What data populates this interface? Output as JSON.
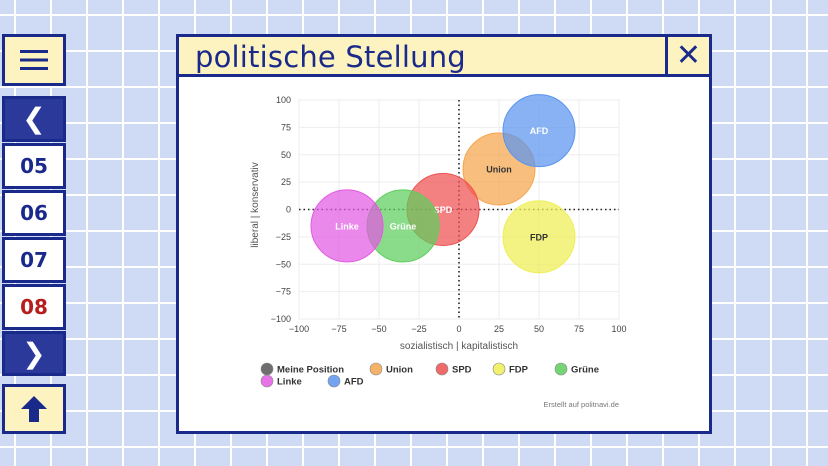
{
  "nav": {
    "menu_icon": "hamburger-menu-icon",
    "prev_icon": "chevron-left-icon",
    "next_icon": "chevron-right-icon",
    "top_icon": "arrow-up-icon",
    "pages": [
      "05",
      "06",
      "07",
      "08"
    ],
    "active_page": "08"
  },
  "window": {
    "title": "politische Stellung",
    "close_icon": "close-x-icon"
  },
  "chart_data": {
    "type": "scatter",
    "title": "",
    "xlabel": "sozialistisch | kapitalistisch",
    "ylabel": "liberal | konservativ",
    "xlim": [
      -100,
      100
    ],
    "ylim": [
      -100,
      100
    ],
    "xticks": [
      "−100",
      "−75",
      "−50",
      "−25",
      "0",
      "25",
      "50",
      "75",
      "100"
    ],
    "yticks": [
      "100",
      "75",
      "50",
      "25",
      "0",
      "−25",
      "−50",
      "−75",
      "−100"
    ],
    "grid": true,
    "series": [
      {
        "name": "Meine Position",
        "color": "#555555",
        "points": []
      },
      {
        "name": "Union",
        "color": "#f5a54c",
        "points": [
          {
            "x": 25,
            "y": 37,
            "label": "Union"
          }
        ]
      },
      {
        "name": "SPD",
        "color": "#ef5050",
        "points": [
          {
            "x": -10,
            "y": 0,
            "label": "SPD"
          }
        ]
      },
      {
        "name": "FDP",
        "color": "#eeee55",
        "points": [
          {
            "x": 50,
            "y": -25,
            "label": "FDP"
          }
        ]
      },
      {
        "name": "Grüne",
        "color": "#5dce5d",
        "points": [
          {
            "x": -35,
            "y": -15,
            "label": "Grüne"
          }
        ]
      },
      {
        "name": "Linke",
        "color": "#e35ae3",
        "points": [
          {
            "x": -70,
            "y": -15,
            "label": "Linke"
          }
        ]
      },
      {
        "name": "AFD",
        "color": "#5a94ee",
        "points": [
          {
            "x": 50,
            "y": 72,
            "label": "AFD"
          }
        ]
      }
    ],
    "credit": "Erstellt auf politnavi.de"
  }
}
